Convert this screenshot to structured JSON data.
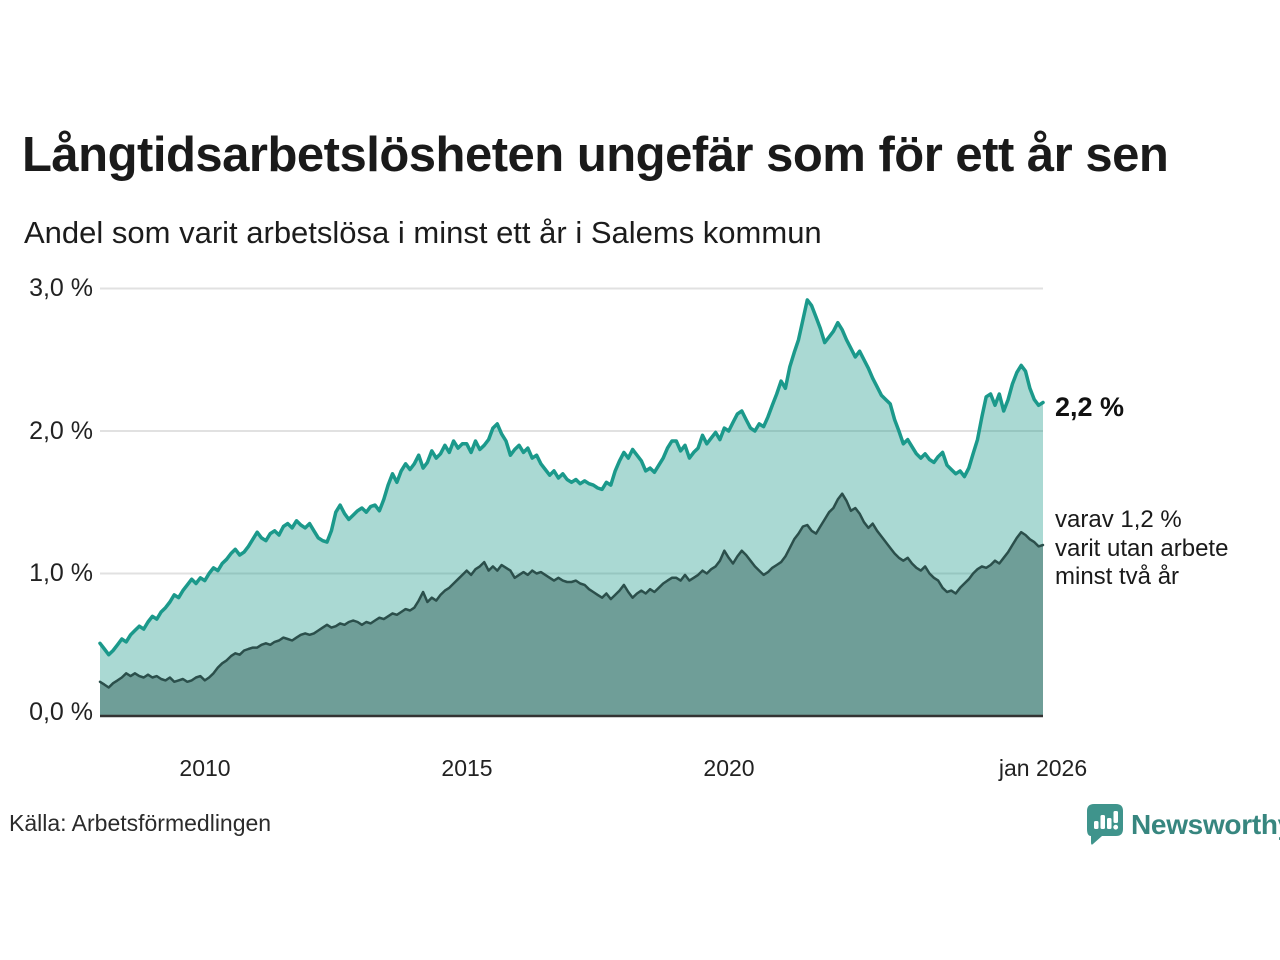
{
  "title": "Långtidsarbetslösheten ungefär som för ett år sen",
  "subtitle": "Andel som varit arbetslösa i minst ett år i Salems kommun",
  "source": "Källa: Arbetsförmedlingen",
  "brand": {
    "name": "Newsworthy",
    "icon": "newsworthy-speech-bubble-bar-chart-icon",
    "color": "#37867f"
  },
  "annotations": {
    "latest_total": "2,2 %",
    "secondary_line1": "varav 1,2 %",
    "secondary_line2": "varit utan arbete",
    "secondary_line3": "minst två år"
  },
  "chart_data": {
    "type": "area",
    "title": "Långtidsarbetslösheten ungefär som för ett år sen",
    "subtitle": "Andel som varit arbetslösa i minst ett år i Salems kommun",
    "x_start": "2008-01",
    "x_end": "2026-01",
    "x_interval": "monthly",
    "ylim": [
      0,
      3
    ],
    "grid": true,
    "legend": "none",
    "unit": "%",
    "latest_values": {
      "minst_ett_ar": 2.2,
      "minst_tva_ar": 1.2
    },
    "yticks": [
      {
        "label": "3,0 %",
        "value": 3.0
      },
      {
        "label": "2,0 %",
        "value": 2.0
      },
      {
        "label": "1,0 %",
        "value": 1.0
      },
      {
        "label": "0,0 %",
        "value": 0.0
      }
    ],
    "xticks": [
      {
        "label": "2010",
        "year": 2010
      },
      {
        "label": "2015",
        "year": 2015
      },
      {
        "label": "2020",
        "year": 2020
      },
      {
        "label": "jan 2026",
        "year": 2026
      }
    ],
    "series": [
      {
        "name": "Andel arbetslösa minst ett år",
        "line_color": "#1b998b",
        "fill_color": "rgba(31,154,140,0.38)",
        "line_width": 3.5,
        "values": [
          0.51,
          0.47,
          0.43,
          0.46,
          0.5,
          0.54,
          0.52,
          0.57,
          0.6,
          0.63,
          0.61,
          0.66,
          0.7,
          0.68,
          0.73,
          0.76,
          0.8,
          0.85,
          0.83,
          0.88,
          0.92,
          0.96,
          0.93,
          0.97,
          0.95,
          1.0,
          1.04,
          1.02,
          1.07,
          1.1,
          1.14,
          1.17,
          1.13,
          1.15,
          1.19,
          1.24,
          1.29,
          1.25,
          1.23,
          1.28,
          1.3,
          1.27,
          1.33,
          1.35,
          1.32,
          1.37,
          1.34,
          1.32,
          1.35,
          1.3,
          1.25,
          1.23,
          1.22,
          1.3,
          1.43,
          1.48,
          1.42,
          1.38,
          1.41,
          1.44,
          1.46,
          1.43,
          1.47,
          1.48,
          1.44,
          1.52,
          1.62,
          1.7,
          1.64,
          1.72,
          1.77,
          1.73,
          1.77,
          1.83,
          1.74,
          1.78,
          1.86,
          1.81,
          1.84,
          1.9,
          1.85,
          1.93,
          1.88,
          1.91,
          1.91,
          1.85,
          1.93,
          1.87,
          1.9,
          1.94,
          2.02,
          2.05,
          1.98,
          1.93,
          1.83,
          1.87,
          1.9,
          1.85,
          1.88,
          1.81,
          1.83,
          1.77,
          1.73,
          1.69,
          1.72,
          1.67,
          1.7,
          1.66,
          1.64,
          1.66,
          1.63,
          1.65,
          1.63,
          1.62,
          1.6,
          1.59,
          1.64,
          1.62,
          1.72,
          1.79,
          1.85,
          1.81,
          1.87,
          1.83,
          1.79,
          1.72,
          1.74,
          1.71,
          1.76,
          1.81,
          1.88,
          1.93,
          1.93,
          1.86,
          1.9,
          1.81,
          1.85,
          1.88,
          1.97,
          1.91,
          1.95,
          1.99,
          1.94,
          2.02,
          2.0,
          2.06,
          2.12,
          2.14,
          2.08,
          2.02,
          2.0,
          2.05,
          2.03,
          2.1,
          2.18,
          2.26,
          2.35,
          2.3,
          2.45,
          2.55,
          2.64,
          2.78,
          2.92,
          2.88,
          2.8,
          2.72,
          2.62,
          2.66,
          2.7,
          2.76,
          2.71,
          2.64,
          2.58,
          2.52,
          2.56,
          2.5,
          2.44,
          2.37,
          2.31,
          2.25,
          2.22,
          2.19,
          2.08,
          2.0,
          1.91,
          1.94,
          1.89,
          1.84,
          1.81,
          1.84,
          1.8,
          1.78,
          1.82,
          1.85,
          1.76,
          1.73,
          1.7,
          1.72,
          1.68,
          1.74,
          1.84,
          1.94,
          2.1,
          2.24,
          2.26,
          2.18,
          2.26,
          2.14,
          2.22,
          2.33,
          2.41,
          2.46,
          2.42,
          2.3,
          2.22,
          2.18,
          2.2
        ]
      },
      {
        "name": "Andel arbetslösa minst två år",
        "line_color": "#2b4f4b",
        "fill_color": "#6f9e98",
        "line_width": 2.5,
        "values": [
          0.24,
          0.22,
          0.2,
          0.23,
          0.25,
          0.27,
          0.3,
          0.28,
          0.3,
          0.28,
          0.27,
          0.29,
          0.27,
          0.28,
          0.26,
          0.25,
          0.27,
          0.24,
          0.25,
          0.26,
          0.24,
          0.25,
          0.27,
          0.28,
          0.25,
          0.27,
          0.3,
          0.34,
          0.37,
          0.39,
          0.42,
          0.44,
          0.43,
          0.46,
          0.47,
          0.48,
          0.48,
          0.5,
          0.51,
          0.5,
          0.52,
          0.53,
          0.55,
          0.54,
          0.53,
          0.55,
          0.57,
          0.58,
          0.57,
          0.58,
          0.6,
          0.62,
          0.64,
          0.62,
          0.63,
          0.65,
          0.64,
          0.66,
          0.67,
          0.66,
          0.64,
          0.66,
          0.65,
          0.67,
          0.69,
          0.68,
          0.7,
          0.72,
          0.71,
          0.73,
          0.75,
          0.74,
          0.76,
          0.81,
          0.87,
          0.8,
          0.83,
          0.81,
          0.85,
          0.88,
          0.9,
          0.93,
          0.96,
          0.99,
          1.02,
          0.99,
          1.03,
          1.05,
          1.08,
          1.02,
          1.05,
          1.02,
          1.06,
          1.04,
          1.02,
          0.97,
          0.99,
          1.01,
          0.99,
          1.02,
          1.0,
          1.01,
          0.99,
          0.97,
          0.95,
          0.97,
          0.95,
          0.94,
          0.94,
          0.95,
          0.93,
          0.92,
          0.89,
          0.87,
          0.85,
          0.83,
          0.86,
          0.82,
          0.85,
          0.88,
          0.92,
          0.87,
          0.83,
          0.86,
          0.88,
          0.86,
          0.89,
          0.87,
          0.9,
          0.93,
          0.95,
          0.97,
          0.97,
          0.95,
          0.99,
          0.95,
          0.97,
          0.99,
          1.02,
          1.0,
          1.03,
          1.05,
          1.09,
          1.16,
          1.11,
          1.07,
          1.12,
          1.16,
          1.13,
          1.09,
          1.05,
          1.02,
          0.99,
          1.01,
          1.04,
          1.06,
          1.08,
          1.12,
          1.18,
          1.24,
          1.28,
          1.33,
          1.34,
          1.3,
          1.28,
          1.33,
          1.38,
          1.43,
          1.46,
          1.52,
          1.56,
          1.51,
          1.44,
          1.46,
          1.42,
          1.36,
          1.32,
          1.35,
          1.3,
          1.26,
          1.22,
          1.18,
          1.14,
          1.11,
          1.09,
          1.11,
          1.07,
          1.04,
          1.02,
          1.05,
          1.0,
          0.97,
          0.95,
          0.9,
          0.87,
          0.88,
          0.86,
          0.9,
          0.93,
          0.96,
          1.0,
          1.03,
          1.05,
          1.04,
          1.06,
          1.09,
          1.07,
          1.11,
          1.15,
          1.2,
          1.25,
          1.29,
          1.27,
          1.24,
          1.22,
          1.19,
          1.2
        ]
      }
    ]
  }
}
